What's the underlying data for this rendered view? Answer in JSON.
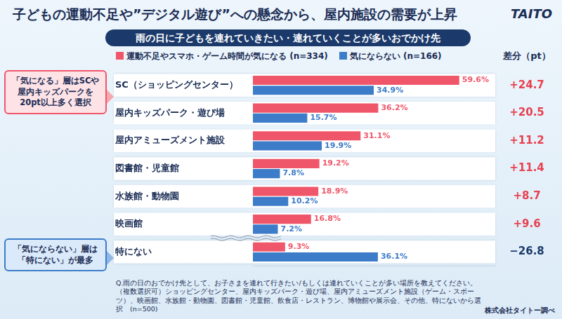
{
  "chart_data": {
    "type": "bar",
    "orientation": "horizontal",
    "title": "子どもの運動不足や”デジタル遊び”への懸念から、屋内施設の需要が上昇",
    "subtitle": "雨の日に子どもを連れていきたい・連れていくことが多いおでかけ先",
    "logo": "TAITO",
    "categories": [
      "SC（ショッピングセンター）",
      "屋内キッズパーク・遊び場",
      "屋内アミューズメント施設",
      "図書館・児童館",
      "水族館・動物園",
      "映画館",
      "特にない"
    ],
    "series": [
      {
        "name": "運動不足やスマホ・ゲーム時間が気になる (n=334)",
        "color": "#f0566a",
        "values": [
          59.6,
          36.2,
          31.1,
          19.2,
          18.9,
          16.8,
          9.3
        ],
        "value_labels": [
          "59.6%",
          "36.2%",
          "31.1%",
          "19.2%",
          "18.9%",
          "16.8%",
          "9.3%"
        ]
      },
      {
        "name": "気にならない (n=166)",
        "color": "#3d7cc9",
        "values": [
          34.9,
          15.7,
          19.9,
          7.8,
          10.2,
          7.2,
          36.1
        ],
        "value_labels": [
          "34.9%",
          "15.7%",
          "19.9%",
          "7.8%",
          "10.2%",
          "7.2%",
          "36.1%"
        ]
      }
    ],
    "xlim": [
      0,
      70
    ],
    "tick_labels": "y",
    "grid": false,
    "data_labels": true,
    "legend": "top",
    "differences": {
      "title": "差分（pt）",
      "values": [
        24.7,
        20.5,
        11.2,
        11.4,
        8.7,
        9.6,
        -26.8
      ],
      "labels": [
        "+24.7",
        "+20.5",
        "+11.2",
        "+11.4",
        "+8.7",
        "+9.6",
        "−26.8"
      ]
    },
    "annotations": [
      "「気になる」層はSCや屋内キッズパークを20pt以上多く選択",
      "「気にならない」層は「特にない」が最多"
    ],
    "note": "Q.雨の日のおでかけ先として、お子さまを連れて行きたい/もしくは連れていくことが多い場所を教えてください。（複数選択可）ショッピングセンター、屋内キッズパーク・遊び場、屋内アミューズメント施設（ゲーム・スポーツ）、映画館、水族館・動物園、図書館・児童館、飲食店・レストラン、博物館や展示会、その他、特にないから選択　(n=500)",
    "source": "株式会社タイトー調べ"
  }
}
